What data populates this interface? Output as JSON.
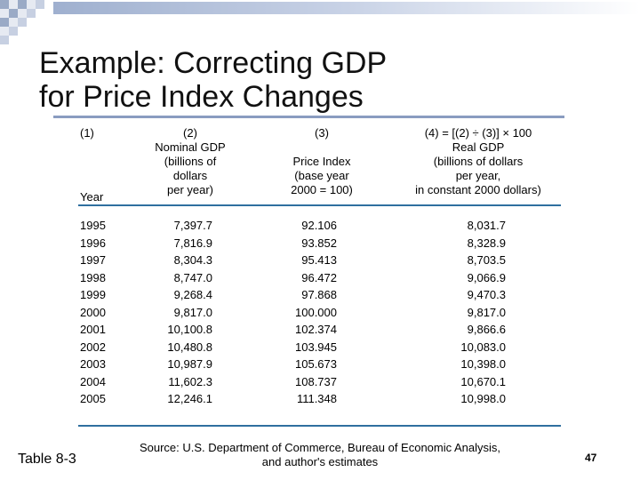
{
  "slide": {
    "title_line1": "Example:  Correcting GDP",
    "title_line2": "for Price Index Changes",
    "table_label": "Table 8-3",
    "source_line1": "Source: U.S. Department of Commerce, Bureau of Economic Analysis,",
    "source_line2": "and author's estimates",
    "page_number": "47"
  },
  "table": {
    "headers": {
      "col1_num": "(1)",
      "col1_label": "Year",
      "col2_num": "(2)",
      "col2_lines": [
        "Nominal GDP",
        "(billions of",
        "dollars",
        "per year)"
      ],
      "col3_num": "(3)",
      "col3_lines": [
        "Price Index",
        "(base year",
        "2000 = 100)"
      ],
      "col4_num": "(4) = [(2) ÷ (3)] × 100",
      "col4_lines": [
        "Real GDP",
        "(billions of dollars",
        "per year,",
        "in constant 2000 dollars)"
      ]
    },
    "rows": [
      {
        "year": "1995",
        "nominal": "7,397.7",
        "index": "92.106",
        "real": "8,031.7"
      },
      {
        "year": "1996",
        "nominal": "7,816.9",
        "index": "93.852",
        "real": "8,328.9"
      },
      {
        "year": "1997",
        "nominal": "8,304.3",
        "index": "95.413",
        "real": "8,703.5"
      },
      {
        "year": "1998",
        "nominal": "8,747.0",
        "index": "96.472",
        "real": "9,066.9"
      },
      {
        "year": "1999",
        "nominal": "9,268.4",
        "index": "97.868",
        "real": "9,470.3"
      },
      {
        "year": "2000",
        "nominal": "9,817.0",
        "index": "100.000",
        "real": "9,817.0"
      },
      {
        "year": "2001",
        "nominal": "10,100.8",
        "index": "102.374",
        "real": "9,866.6"
      },
      {
        "year": "2002",
        "nominal": "10,480.8",
        "index": "103.945",
        "real": "10,083.0"
      },
      {
        "year": "2003",
        "nominal": "10,987.9",
        "index": "105.673",
        "real": "10,398.0"
      },
      {
        "year": "2004",
        "nominal": "11,602.3",
        "index": "108.737",
        "real": "10,670.1"
      },
      {
        "year": "2005",
        "nominal": "12,246.1",
        "index": "111.348",
        "real": "10,998.0"
      }
    ]
  },
  "colors": {
    "rule": "#2f6f9f",
    "title_rule": "#8a9cc0",
    "checker_dark": "#9aaac6",
    "checker_light": "#e6eaf2"
  }
}
